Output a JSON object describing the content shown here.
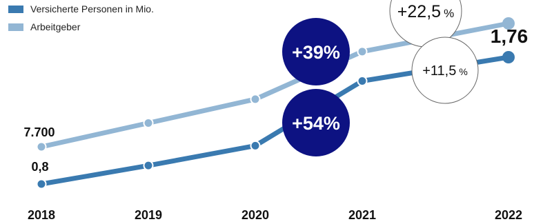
{
  "chart_data": {
    "type": "line",
    "categories": [
      "2018",
      "2019",
      "2020",
      "2021",
      "2022"
    ],
    "legend_position": "top-left",
    "grid": false,
    "series": [
      {
        "name": "Versicherte Personen in Mio.",
        "color": "#3a7ab0",
        "values": [
          0.8,
          0.94,
          1.09,
          1.58,
          1.76
        ]
      },
      {
        "name": "Arbeitgeber",
        "color": "#92b6d4",
        "values": [
          7700,
          8800,
          9900,
          12100,
          13400
        ]
      }
    ],
    "data_labels": {
      "series0_first": "0,8",
      "series0_last": "1,76",
      "series1_first": "7.700"
    },
    "annotations": [
      {
        "id": "badge-arbeitgeber-39",
        "text": "+39%",
        "style": "navy"
      },
      {
        "id": "badge-personen-54",
        "text": "+54%",
        "style": "navy"
      },
      {
        "id": "badge-arbeitgeber-22",
        "number": "+22,5",
        "unit": "%",
        "style": "outline"
      },
      {
        "id": "badge-personen-11",
        "number": "+11,5",
        "unit": "%",
        "style": "outline"
      }
    ],
    "colors": {
      "badge_navy": "#0d1282",
      "badge_outline": "#666666"
    }
  }
}
